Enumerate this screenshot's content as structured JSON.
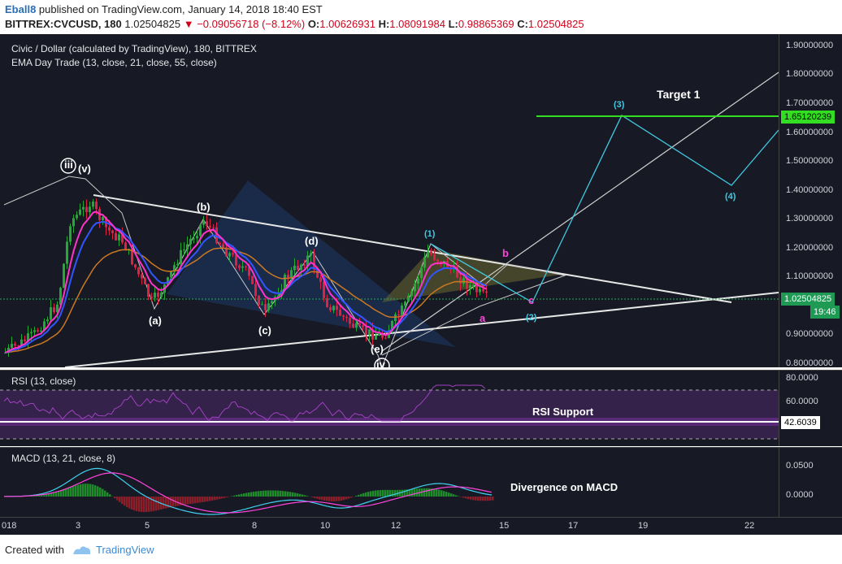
{
  "header": {
    "author": "Eball8",
    "published": " published on TradingView.com, January 14, 2018 18:40 EST",
    "symbol": "BITTREX:CVCUSD, 180",
    "last": "1.02504825",
    "change": "−0.09056718 (−8.12%)",
    "o_label": "O:",
    "o_val": "1.00626931",
    "h_label": "H:",
    "h_val": "1.08091984",
    "l_label": "L:",
    "l_val": "0.98865369",
    "c_label": "C:",
    "c_val": "1.02504825"
  },
  "main_panel": {
    "title": "Civic / Dollar (calculated by TradingView), 180, BITTREX",
    "indicator": "EMA Day Trade (13, close, 21, close, 55, close)",
    "price_ticks": [
      "1.90000000",
      "1.80000000",
      "1.70000000",
      "1.60000000",
      "1.50000000",
      "1.40000000",
      "1.30000000",
      "1.20000000",
      "1.10000000",
      "1.00000000",
      "0.90000000",
      "0.80000000"
    ],
    "target_price": "1.65120239",
    "last_price": "1.02504825",
    "countdown": "19:46",
    "annotations": {
      "target": "Target 1",
      "iii": "iii",
      "v": "(v)",
      "a": "(a)",
      "b": "(b)",
      "c": "(c)",
      "d": "(d)",
      "e": "(e)",
      "iv": "iv",
      "w1": "(1)",
      "w2": "(2)",
      "w3": "(3)",
      "w4": "(4)",
      "pa": "a",
      "pb": "b",
      "pc": "c"
    },
    "colors": {
      "target_line": "#33dd22",
      "up": "#22aa33",
      "down": "#dd2244",
      "ema13": "#ff33cc",
      "ema21": "#3355ff",
      "ema55": "#cc7722",
      "cyan": "#40c8e0"
    }
  },
  "rsi_panel": {
    "title": "RSI (13, close)",
    "ticks": [
      "80.0000",
      "60.0000"
    ],
    "value": "42.6039",
    "support_label": "RSI Support"
  },
  "macd_panel": {
    "title": "MACD (13, 21, close, 8)",
    "ticks": [
      "0.0500",
      "0.0000"
    ],
    "divergence_label": "Divergence on MACD"
  },
  "x_axis": {
    "labels": [
      "018",
      "3",
      "5",
      "8",
      "10",
      "12",
      "15",
      "17",
      "19",
      "22"
    ]
  },
  "footer": {
    "created": "Created with",
    "brand": "TradingView"
  }
}
